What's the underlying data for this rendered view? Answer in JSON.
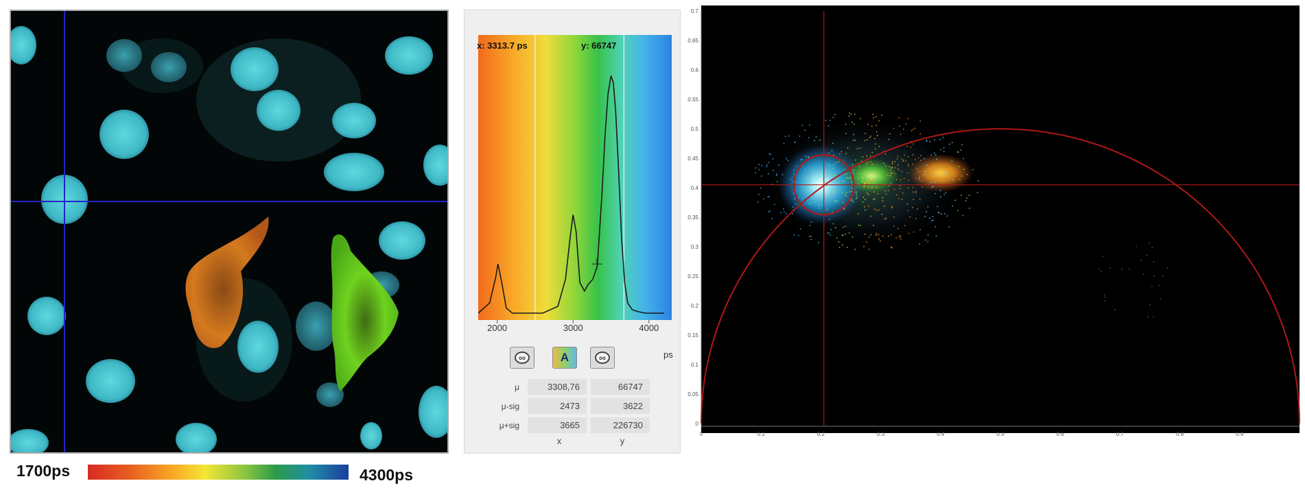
{
  "intensity_scale": {
    "min_label": "1700ps",
    "max_label": "4300ps",
    "colors": [
      "#d62b22",
      "#f7a623",
      "#f5e636",
      "#8cc63e",
      "#2c9a48",
      "#1f8ea6",
      "#1b3e9e"
    ]
  },
  "histogram": {
    "cursor_x_label": "x: 3313.7  ps",
    "cursor_y_label": "y: 66747",
    "x_ticks": [
      "2000",
      "3000",
      "4000"
    ],
    "unit_label": "ps",
    "chart_data": {
      "type": "line",
      "x": [
        1750,
        1900,
        1980,
        2010,
        2060,
        2120,
        2200,
        2400,
        2600,
        2800,
        2900,
        2960,
        3000,
        3040,
        3090,
        3150,
        3200,
        3260,
        3320,
        3380,
        3420,
        3460,
        3500,
        3530,
        3560,
        3600,
        3640,
        3680,
        3720,
        3780,
        3850,
        3950,
        4050,
        4200
      ],
      "y": [
        0,
        3000,
        10500,
        14500,
        9000,
        1500,
        0,
        0,
        0,
        2000,
        10000,
        22000,
        29000,
        24000,
        9000,
        6500,
        8500,
        10000,
        14000,
        35000,
        52000,
        64500,
        70000,
        68000,
        60000,
        42000,
        22000,
        9000,
        3000,
        1000,
        500,
        0,
        0,
        0
      ],
      "xlim": [
        1750,
        4300
      ],
      "ylim": [
        0,
        80000
      ],
      "cursor_x": 3313.7,
      "region_lines": [
        2500,
        3670
      ]
    }
  },
  "toolbar": {
    "btn1_icon": "zoom-out-icon",
    "btn2_icon": "color-scale-icon",
    "btn2_label": "A",
    "btn3_icon": "zoom-in-icon"
  },
  "stats": {
    "rows": [
      {
        "label": "μ",
        "x": "3308,76",
        "y": "66747"
      },
      {
        "label": "μ-sig",
        "x": "2473",
        "y": "3622"
      },
      {
        "label": "μ+sig",
        "x": "3665",
        "y": "226730"
      }
    ],
    "col_x": "x",
    "col_y": "y"
  },
  "phasor": {
    "chart_data": {
      "type": "scatter",
      "xlim": [
        0,
        1
      ],
      "ylim": [
        0,
        0.7
      ],
      "x_ticks": [
        "0",
        "0.1",
        "0.2",
        "0.3",
        "0.4",
        "0.5",
        "0.6",
        "0.7",
        "0.8",
        "0.9"
      ],
      "y_ticks": [
        "0",
        "0.05",
        "0.1",
        "0.15",
        "0.2",
        "0.25",
        "0.3",
        "0.35",
        "0.4",
        "0.45",
        "0.5",
        "0.55",
        "0.6",
        "0.65",
        "0.7"
      ],
      "universal_circle": {
        "center": [
          0.5,
          0
        ],
        "radius": 0.5
      },
      "cursor": {
        "x": 0.205,
        "y": 0.405,
        "circle_radius": 0.05
      },
      "clusters": [
        {
          "name": "cyan",
          "x": 0.2,
          "y": 0.405,
          "color": "#35c0ff"
        },
        {
          "name": "green",
          "x": 0.285,
          "y": 0.42,
          "color": "#7de84a"
        },
        {
          "name": "orange",
          "x": 0.4,
          "y": 0.425,
          "color": "#f7a022"
        }
      ],
      "grid": false,
      "background": "#000000",
      "line_color": "#b01818"
    }
  }
}
